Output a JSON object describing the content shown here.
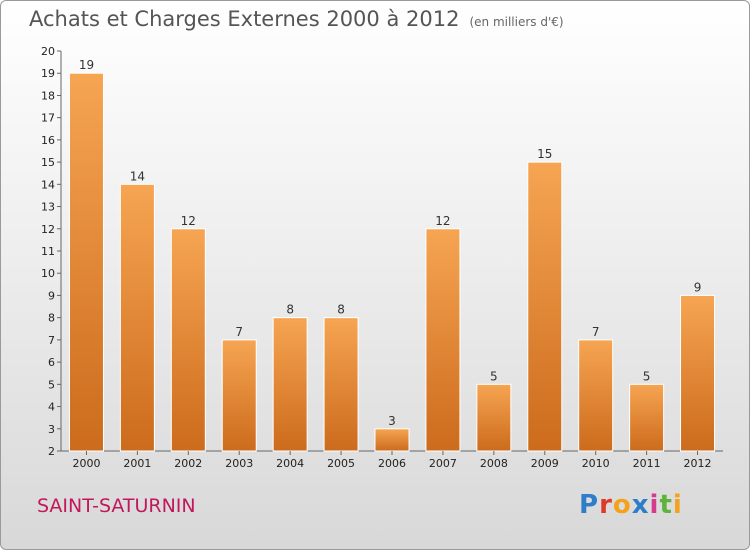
{
  "header": {
    "title": "Achats et Charges Externes 2000 à 2012",
    "unit": "(en milliers d'€)"
  },
  "footer": {
    "town": "SAINT-SATURNIN",
    "logo_letters": [
      "P",
      "r",
      "o",
      "x",
      "i",
      "t",
      "i"
    ]
  },
  "colors": {
    "bar_top": "#f6a552",
    "bar_bottom": "#cc6b1c",
    "title": "#555555",
    "town": "#c2185b"
  },
  "chart_data": {
    "type": "bar",
    "title": "Achats et Charges Externes 2000 à 2012",
    "unit": "(en milliers d'€)",
    "categories": [
      "2000",
      "2001",
      "2002",
      "2003",
      "2004",
      "2005",
      "2006",
      "2007",
      "2008",
      "2009",
      "2010",
      "2011",
      "2012"
    ],
    "values": [
      19,
      14,
      12,
      7,
      8,
      8,
      3,
      12,
      5,
      15,
      7,
      5,
      9
    ],
    "ylim": [
      2,
      20
    ],
    "yticks": [
      2,
      3,
      4,
      5,
      6,
      7,
      8,
      9,
      10,
      11,
      12,
      13,
      14,
      15,
      16,
      17,
      18,
      19,
      20
    ],
    "grid": false,
    "legend": "none",
    "data_labels": true
  }
}
